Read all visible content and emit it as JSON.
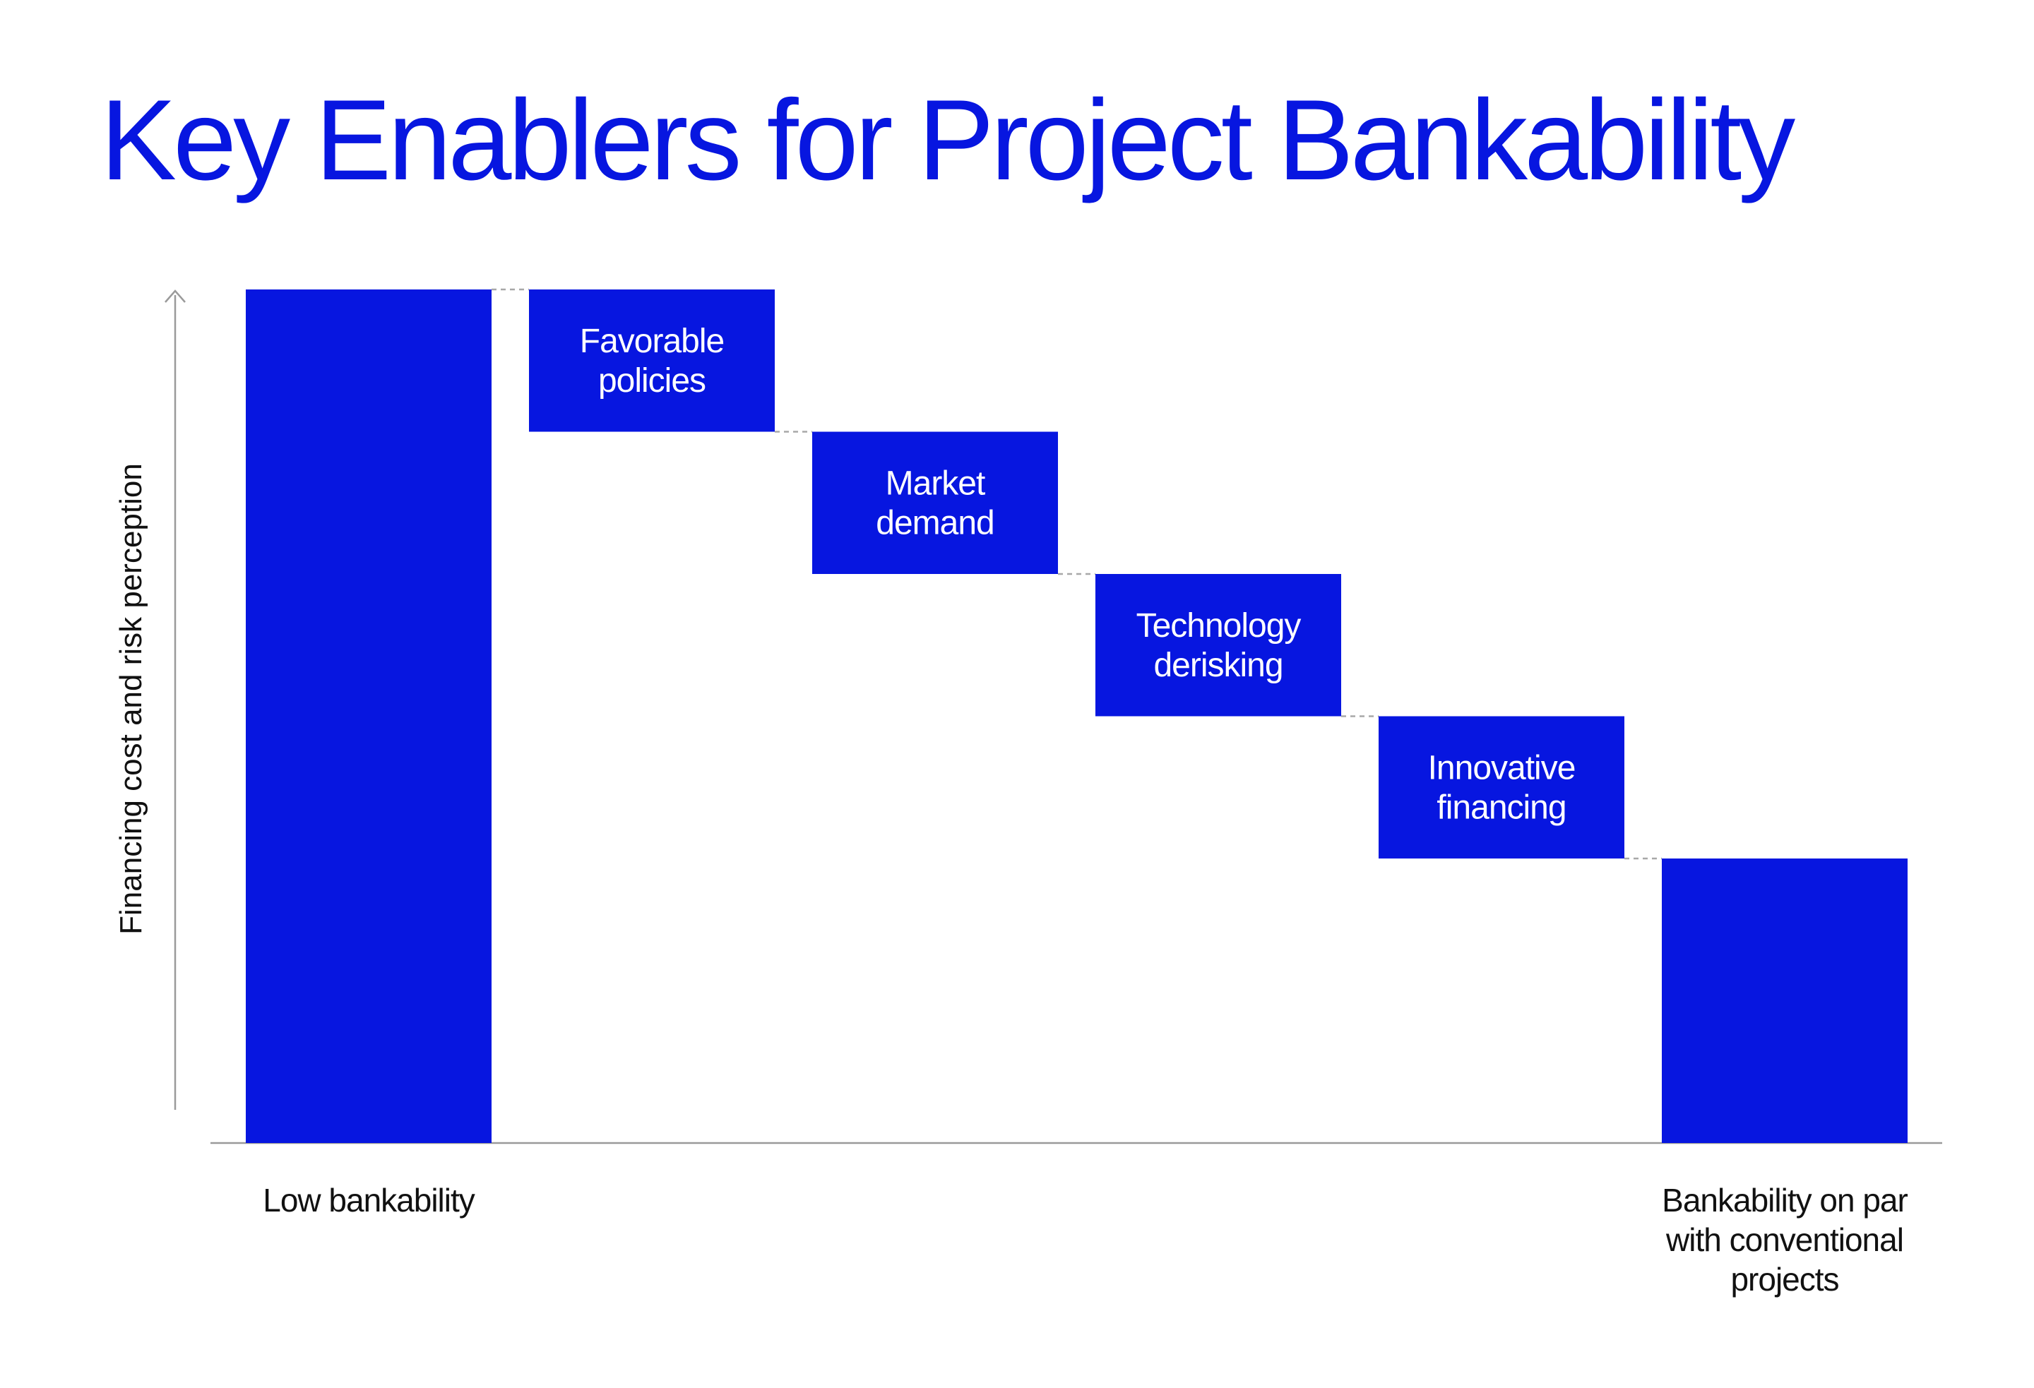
{
  "title": "Key Enablers for Project Bankability",
  "colors": {
    "title": "#0716e0",
    "bar": "#0716e0",
    "bar_text": "#ffffff",
    "axis": "#9a9a9a",
    "connector": "#a8a8a8",
    "label_text": "#111111"
  },
  "chart_data": {
    "type": "waterfall",
    "title": "Key Enablers for Project Bankability",
    "xlabel": "",
    "ylabel": "Financing cost and risk perception",
    "y_numeric_labels": false,
    "ylim": [
      0,
      6
    ],
    "grid": false,
    "legend": "none",
    "steps": [
      {
        "label": "",
        "value": 6,
        "kind": "total",
        "category": "Low bankability"
      },
      {
        "label": "Favorable policies",
        "value": -1,
        "kind": "delta",
        "category": ""
      },
      {
        "label": "Market demand",
        "value": -1,
        "kind": "delta",
        "category": ""
      },
      {
        "label": "Technology derisking",
        "value": -1,
        "kind": "delta",
        "category": ""
      },
      {
        "label": "Innovative financing",
        "value": -1,
        "kind": "delta",
        "category": ""
      },
      {
        "label": "",
        "value": 2,
        "kind": "total",
        "category": "Bankability on par with conventional projects"
      }
    ],
    "category_labels": [
      "Low bankability",
      "Bankability on par with conventional projects"
    ]
  }
}
